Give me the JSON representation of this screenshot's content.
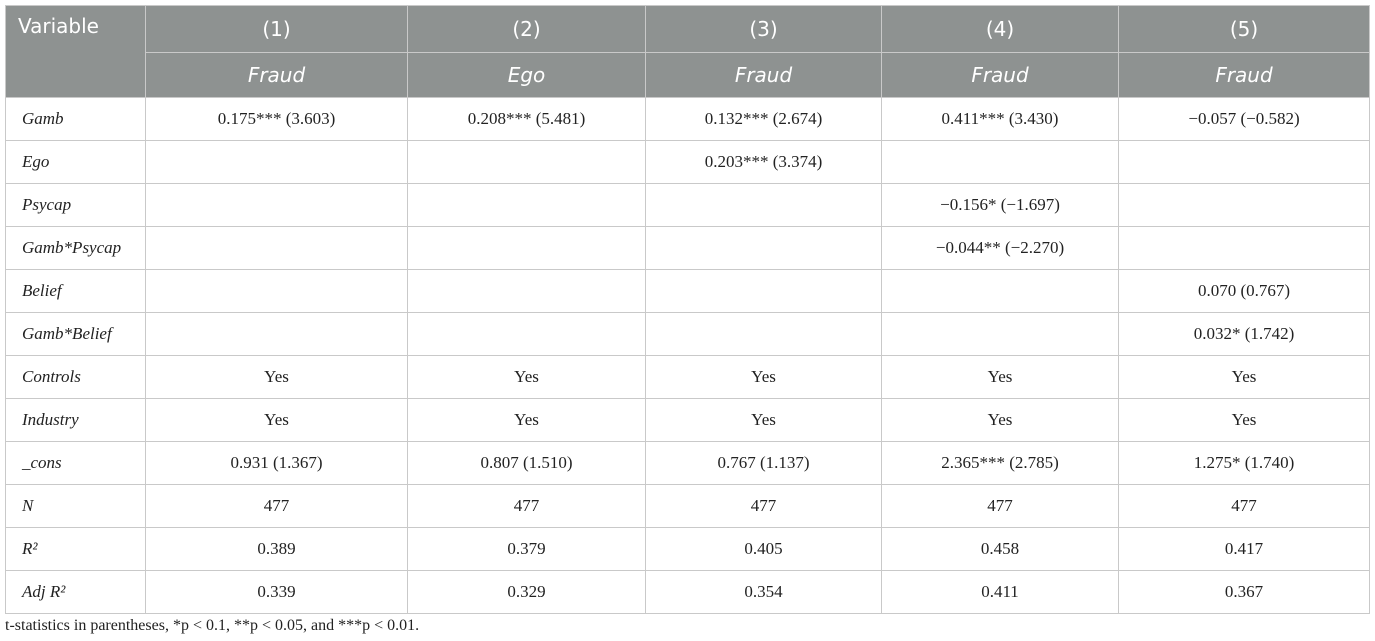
{
  "table": {
    "columns": [
      "Variable",
      "(1)",
      "(2)",
      "(3)",
      "(4)",
      "(5)"
    ],
    "subheaders": [
      "Fraud",
      "Ego",
      "Fraud",
      "Fraud",
      "Fraud"
    ],
    "rows": [
      {
        "label": "Gamb",
        "cells": [
          "0.175*** (3.603)",
          "0.208*** (5.481)",
          "0.132*** (2.674)",
          "0.411*** (3.430)",
          "−0.057 (−0.582)"
        ]
      },
      {
        "label": "Ego",
        "cells": [
          null,
          null,
          "0.203*** (3.374)",
          null,
          null
        ]
      },
      {
        "label": "Psycap",
        "cells": [
          null,
          null,
          null,
          "−0.156* (−1.697)",
          null
        ]
      },
      {
        "label": "Gamb*Psycap",
        "cells": [
          null,
          null,
          null,
          "−0.044** (−2.270)",
          null
        ]
      },
      {
        "label": "Belief",
        "cells": [
          null,
          null,
          null,
          null,
          "0.070 (0.767)"
        ]
      },
      {
        "label": "Gamb*Belief",
        "cells": [
          null,
          null,
          null,
          null,
          "0.032* (1.742)"
        ]
      },
      {
        "label": "Controls",
        "cells": [
          "Yes",
          "Yes",
          "Yes",
          "Yes",
          "Yes"
        ]
      },
      {
        "label": "Industry",
        "cells": [
          "Yes",
          "Yes",
          "Yes",
          "Yes",
          "Yes"
        ]
      },
      {
        "label": "_cons",
        "cells": [
          "0.931 (1.367)",
          "0.807 (1.510)",
          "0.767 (1.137)",
          "2.365*** (2.785)",
          "1.275* (1.740)"
        ]
      },
      {
        "label": "N",
        "cells": [
          "477",
          "477",
          "477",
          "477",
          "477"
        ]
      },
      {
        "label": "R²",
        "cells": [
          "0.389",
          "0.379",
          "0.405",
          "0.458",
          "0.417"
        ]
      },
      {
        "label": "Adj R²",
        "cells": [
          "0.339",
          "0.329",
          "0.354",
          "0.411",
          "0.367"
        ]
      }
    ],
    "footnote": "t-statistics in parentheses, *p < 0.1, **p < 0.05, and ***p < 0.01."
  }
}
